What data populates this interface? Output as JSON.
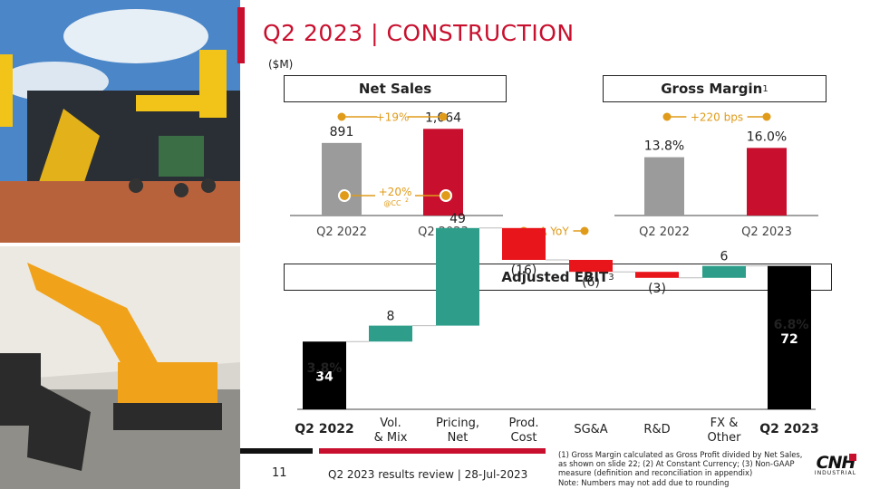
{
  "slide": {
    "title": "Q2 2023 | CONSTRUCTION",
    "unit": "($M)",
    "page_number": "11",
    "footer_text": "Q2 2023 results review | 28-Jul-2023",
    "footnote": "(1) Gross Margin calculated as Gross Profit divided by Net Sales, as shown on slide 22; (2) At Constant Currency; (3) Non-GAAP measure (definition and reconciliation in appendix)",
    "note": "Note: Numbers may not add due to rounding",
    "logo_text": "CNH",
    "logo_sub": "INDUSTRIAL",
    "colors": {
      "accent": "#c8102e",
      "gray": "#9b9b9b",
      "teal": "#2e9e8a",
      "red": "#e8151b",
      "black": "#000000",
      "gold": "#e09b1a"
    }
  },
  "legend": {
    "yoy": "Δ YoY"
  },
  "chart_data": [
    {
      "type": "bar",
      "title": "Net Sales",
      "categories": [
        "Q2 2022",
        "Q2 2023"
      ],
      "values": [
        891,
        1064
      ],
      "value_labels": [
        "891",
        "1,064"
      ],
      "annotations": {
        "yoy": "+19%",
        "cc": "+20%",
        "cc_note": "@CC",
        "cc_sup": "2"
      },
      "ylim": [
        0,
        1200
      ]
    },
    {
      "type": "bar",
      "title": "Gross Margin",
      "title_sup": "1",
      "categories": [
        "Q2 2022",
        "Q2 2023"
      ],
      "values": [
        13.8,
        16.0
      ],
      "value_labels": [
        "13.8%",
        "16.0%"
      ],
      "annotations": {
        "yoy": "+220 bps"
      },
      "ylim": [
        0,
        18
      ]
    },
    {
      "type": "bar",
      "subtype": "waterfall",
      "title": "Adjusted EBIT",
      "title_sup": "3",
      "categories": [
        "Q2 2022",
        "Vol. & Mix",
        "Pricing, Net",
        "Prod. Cost",
        "SG&A",
        "R&D",
        "FX & Other",
        "Q2 2023"
      ],
      "category_lines": [
        [
          "Q2 2022"
        ],
        [
          "Vol.",
          "& Mix"
        ],
        [
          "Pricing,",
          "Net"
        ],
        [
          "Prod.",
          "Cost"
        ],
        [
          "SG&A"
        ],
        [
          "R&D"
        ],
        [
          "FX &",
          "Other"
        ],
        [
          "Q2 2023"
        ]
      ],
      "values": [
        34,
        8,
        49,
        -16,
        -6,
        -3,
        6,
        72
      ],
      "value_labels": [
        "34",
        "8",
        "49",
        "(16)",
        "(6)",
        "(3)",
        "6",
        "72"
      ],
      "kinds": [
        "total",
        "delta",
        "delta",
        "delta",
        "delta",
        "delta",
        "delta",
        "total"
      ],
      "margins": {
        "start": "3.8%",
        "end": "6.8%"
      },
      "ylim": [
        0,
        90
      ]
    }
  ]
}
